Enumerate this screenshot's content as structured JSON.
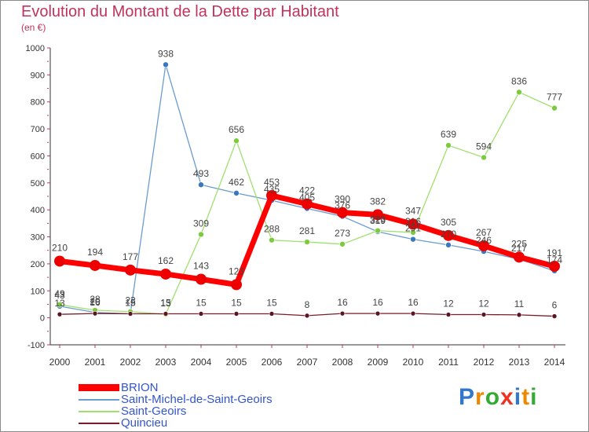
{
  "chart_data": {
    "type": "line",
    "title": "Evolution du Montant de la Dette par Habitant",
    "unit_label": "(en €)",
    "xlabel": "",
    "ylabel": "(en €)",
    "ylim": [
      -100,
      1000
    ],
    "y_ticks": [
      -100,
      0,
      100,
      200,
      300,
      400,
      500,
      600,
      700,
      800,
      900,
      1000
    ],
    "x": [
      "2000",
      "2001",
      "2002",
      "2003",
      "2004",
      "2005",
      "2006",
      "2007",
      "2008",
      "2009",
      "2010",
      "2011",
      "2012",
      "2013",
      "2014"
    ],
    "grid": false,
    "legend_position": "bottom-left",
    "series": [
      {
        "name": "Saint-Michel-de-Saint-Geoirs",
        "color": "#6b9ccf",
        "marker": "#3a78bd",
        "width": 1.3,
        "radius": 3.5,
        "values": [
          43,
          20,
          15,
          938,
          493,
          462,
          435,
          405,
          376,
          319,
          291,
          270,
          246,
          217,
          174
        ]
      },
      {
        "name": "Saint-Geoirs",
        "color": "#9fe06e",
        "marker": "#7ccb3e",
        "width": 1.3,
        "radius": 3.5,
        "values": [
          49,
          28,
          23,
          13,
          309,
          656,
          288,
          281,
          273,
          323,
          316,
          639,
          594,
          836,
          777
        ]
      },
      {
        "name": "Quincieu",
        "color": "#7a1d2a",
        "marker": "#5c1420",
        "width": 1.3,
        "radius": 3,
        "values": [
          13,
          16,
          15,
          15,
          15,
          15,
          15,
          8,
          16,
          16,
          16,
          12,
          12,
          11,
          6
        ]
      },
      {
        "name": "BRION",
        "color": "#ff0000",
        "marker": "#ee0000",
        "width": 7,
        "radius": 7,
        "values": [
          210,
          194,
          177,
          162,
          143,
          123,
          453,
          422,
          390,
          382,
          347,
          305,
          267,
          225,
          191
        ]
      }
    ],
    "data_labels": {
      "Saint-Michel-de-Saint-Geoirs": [
        "43",
        "20",
        "15",
        "938",
        "493",
        "462",
        "435",
        "405",
        "376",
        "319",
        "291",
        "270",
        "246",
        "217",
        "174"
      ],
      "Saint-Geoirs": [
        "49",
        "28",
        "23",
        "13",
        "309",
        "656",
        "288",
        "281",
        "273",
        "323",
        "316",
        "639",
        "594",
        "836",
        "777"
      ],
      "Quincieu": [
        "13",
        "16",
        "15",
        "15",
        "15",
        "15",
        "15",
        "8",
        "16",
        "16",
        "16",
        "12",
        "12",
        "11",
        "6"
      ],
      "BRION": [
        "210",
        "194",
        "177",
        "162",
        "143",
        "123",
        "453",
        "422",
        "390",
        "382",
        "347",
        "305",
        "267",
        "225",
        "191"
      ]
    },
    "legend": [
      "BRION",
      "Saint-Michel-de-Saint-Geoirs",
      "Saint-Geoirs",
      "Quincieu"
    ]
  },
  "logo": {
    "text": "Proxiti",
    "letter_colors": [
      "#3377cc",
      "#ee8800",
      "#33aa33",
      "#ee3322",
      "#3377cc",
      "#ee8800",
      "#33aa33"
    ]
  }
}
